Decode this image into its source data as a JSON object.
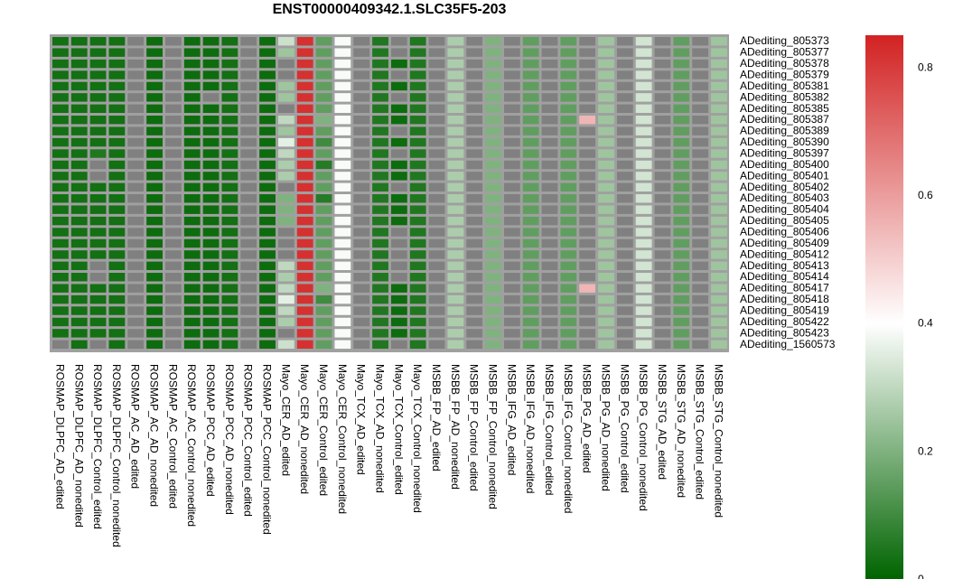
{
  "chart_data": {
    "type": "heatmap",
    "title": "ENST00000409342.1.SLC35F5-203",
    "columns": [
      "ROSMAP_DLPFC_AD_edited",
      "ROSMAP_DLPFC_AD_nonedited",
      "ROSMAP_DLPFC_Control_edited",
      "ROSMAP_DLPFC_Control_nonedited",
      "ROSMAP_AC_AD_edited",
      "ROSMAP_AC_AD_nonedited",
      "ROSMAP_AC_Control_edited",
      "ROSMAP_AC_Control_nonedited",
      "ROSMAP_PCC_AD_edited",
      "ROSMAP_PCC_AD_nonedited",
      "ROSMAP_PCC_Control_edited",
      "ROSMAP_PCC_Control_nonedited",
      "Mayo_CER_AD_edited",
      "Mayo_CER_AD_nonedited",
      "Mayo_CER_Control_edited",
      "Mayo_CER_Control_nonedited",
      "Mayo_TCX_AD_edited",
      "Mayo_TCX_AD_nonedited",
      "Mayo_TCX_Control_edited",
      "Mayo_TCX_Control_nonedited",
      "MSBB_FP_AD_edited",
      "MSBB_FP_AD_nonedited",
      "MSBB_FP_Control_edited",
      "MSBB_FP_Control_nonedited",
      "MSBB_IFG_AD_edited",
      "MSBB_IFG_AD_nonedited",
      "MSBB_IFG_Control_edited",
      "MSBB_IFG_Control_nonedited",
      "MSBB_PG_AD_edited",
      "MSBB_PG_AD_nonedited",
      "MSBB_PG_Control_edited",
      "MSBB_PG_Control_nonedited",
      "MSBB_STG_AD_edited",
      "MSBB_STG_AD_nonedited",
      "MSBB_STG_Control_edited",
      "MSBB_STG_Control_nonedited"
    ],
    "rows": [
      "ADediting_805373",
      "ADediting_805377",
      "ADediting_805378",
      "ADediting_805379",
      "ADediting_805381",
      "ADediting_805382",
      "ADediting_805385",
      "ADediting_805387",
      "ADediting_805389",
      "ADediting_805390",
      "ADediting_805397",
      "ADediting_805400",
      "ADediting_805401",
      "ADediting_805402",
      "ADediting_805403",
      "ADediting_805404",
      "ADediting_805405",
      "ADediting_805406",
      "ADediting_805409",
      "ADediting_805412",
      "ADediting_805413",
      "ADediting_805414",
      "ADediting_805417",
      "ADediting_805418",
      "ADediting_805419",
      "ADediting_805422",
      "ADediting_805423",
      "ADediting_1560573"
    ],
    "values": [
      [
        0.03,
        0.03,
        0.03,
        0.03,
        null,
        0.02,
        null,
        0.02,
        0.02,
        0.03,
        null,
        0.02,
        0.32,
        0.82,
        0.15,
        0.39,
        null,
        0.05,
        null,
        0.05,
        null,
        0.27,
        null,
        0.2,
        null,
        0.15,
        null,
        0.15,
        null,
        0.25,
        null,
        0.33,
        null,
        0.15,
        null,
        0.25
      ],
      [
        0.03,
        0.03,
        0.03,
        0.03,
        null,
        0.02,
        null,
        0.02,
        0.02,
        0.03,
        null,
        0.02,
        0.25,
        0.82,
        0.15,
        0.39,
        null,
        0.05,
        null,
        0.05,
        null,
        0.27,
        null,
        0.2,
        null,
        0.15,
        null,
        0.15,
        null,
        0.25,
        null,
        0.33,
        null,
        0.15,
        null,
        0.25
      ],
      [
        0.03,
        0.03,
        0.03,
        0.03,
        null,
        0.02,
        null,
        0.02,
        0.02,
        0.03,
        null,
        0.02,
        null,
        0.82,
        0.15,
        0.39,
        null,
        0.05,
        0.02,
        0.05,
        null,
        0.27,
        null,
        0.2,
        null,
        0.15,
        null,
        0.15,
        null,
        0.25,
        null,
        0.33,
        null,
        0.15,
        null,
        0.25
      ],
      [
        0.03,
        0.03,
        0.03,
        0.03,
        null,
        0.02,
        null,
        0.02,
        0.02,
        0.03,
        null,
        0.02,
        null,
        0.82,
        0.15,
        0.39,
        null,
        0.05,
        null,
        0.05,
        null,
        0.27,
        null,
        0.2,
        null,
        0.15,
        null,
        0.15,
        null,
        0.25,
        null,
        0.33,
        null,
        0.15,
        null,
        0.25
      ],
      [
        0.03,
        0.03,
        0.03,
        0.03,
        null,
        0.02,
        null,
        0.02,
        0.02,
        0.03,
        null,
        0.02,
        0.25,
        0.82,
        0.15,
        0.39,
        null,
        0.05,
        0.02,
        0.05,
        null,
        0.27,
        null,
        0.2,
        null,
        0.15,
        null,
        0.15,
        null,
        0.25,
        null,
        0.33,
        null,
        0.15,
        null,
        0.25
      ],
      [
        0.03,
        0.03,
        0.03,
        0.03,
        null,
        0.02,
        null,
        0.02,
        null,
        0.03,
        null,
        0.02,
        0.25,
        0.82,
        0.15,
        0.39,
        null,
        0.05,
        null,
        0.05,
        null,
        0.27,
        null,
        0.2,
        null,
        0.15,
        null,
        0.15,
        null,
        0.25,
        null,
        0.33,
        null,
        0.15,
        null,
        0.25
      ],
      [
        0.03,
        0.03,
        0.03,
        0.03,
        null,
        0.02,
        null,
        0.02,
        0.02,
        0.03,
        null,
        0.02,
        null,
        0.82,
        0.15,
        0.39,
        null,
        0.05,
        0.02,
        0.05,
        null,
        0.27,
        null,
        0.2,
        null,
        0.15,
        null,
        0.15,
        null,
        0.25,
        null,
        0.33,
        null,
        0.15,
        null,
        0.25
      ],
      [
        0.03,
        0.03,
        0.03,
        0.03,
        null,
        0.02,
        null,
        0.02,
        0.02,
        0.03,
        null,
        0.02,
        0.3,
        0.82,
        0.2,
        0.39,
        null,
        0.05,
        0.02,
        0.05,
        null,
        0.27,
        null,
        0.2,
        null,
        0.15,
        null,
        0.15,
        0.55,
        0.25,
        null,
        0.33,
        null,
        0.15,
        null,
        0.25
      ],
      [
        0.03,
        0.03,
        0.03,
        0.03,
        null,
        0.02,
        null,
        0.02,
        0.02,
        0.03,
        null,
        0.02,
        0.25,
        0.82,
        0.15,
        0.39,
        null,
        0.05,
        null,
        0.05,
        null,
        0.27,
        null,
        0.2,
        null,
        0.15,
        null,
        0.15,
        null,
        0.25,
        null,
        0.33,
        null,
        0.15,
        null,
        0.25
      ],
      [
        0.03,
        0.03,
        0.03,
        0.03,
        null,
        0.02,
        null,
        0.02,
        0.02,
        0.03,
        null,
        0.02,
        0.36,
        0.82,
        0.1,
        0.39,
        null,
        0.05,
        0.02,
        0.05,
        null,
        0.27,
        null,
        0.2,
        null,
        0.15,
        null,
        0.15,
        null,
        0.25,
        null,
        0.33,
        null,
        0.15,
        null,
        0.25
      ],
      [
        0.03,
        0.03,
        0.05,
        0.03,
        null,
        0.02,
        null,
        0.02,
        0.02,
        0.03,
        null,
        0.02,
        0.3,
        0.82,
        0.15,
        0.39,
        null,
        0.05,
        null,
        0.05,
        null,
        0.27,
        null,
        0.2,
        null,
        0.15,
        null,
        0.15,
        null,
        0.25,
        null,
        0.33,
        null,
        0.15,
        null,
        0.25
      ],
      [
        0.03,
        0.03,
        null,
        0.03,
        null,
        0.02,
        null,
        0.02,
        0.02,
        0.03,
        null,
        0.02,
        0.27,
        0.82,
        0.06,
        0.39,
        null,
        0.05,
        0.02,
        0.05,
        null,
        0.27,
        null,
        0.2,
        null,
        0.15,
        null,
        0.15,
        null,
        0.25,
        null,
        0.33,
        null,
        0.15,
        null,
        0.25
      ],
      [
        0.03,
        0.03,
        null,
        0.03,
        null,
        0.02,
        null,
        0.02,
        0.02,
        0.03,
        null,
        0.02,
        0.27,
        0.82,
        0.15,
        0.39,
        null,
        0.05,
        0.02,
        0.05,
        null,
        0.27,
        null,
        0.2,
        null,
        0.15,
        null,
        0.15,
        null,
        0.25,
        null,
        0.33,
        null,
        0.15,
        null,
        0.25
      ],
      [
        0.03,
        0.03,
        0.03,
        0.03,
        null,
        0.02,
        null,
        0.02,
        0.02,
        0.03,
        null,
        0.02,
        null,
        0.82,
        0.15,
        0.39,
        null,
        0.05,
        null,
        0.05,
        null,
        0.27,
        null,
        0.2,
        null,
        0.15,
        null,
        0.15,
        null,
        0.25,
        null,
        0.33,
        null,
        0.15,
        null,
        0.25
      ],
      [
        0.03,
        0.03,
        0.03,
        0.03,
        null,
        0.02,
        null,
        0.02,
        0.02,
        0.03,
        null,
        0.02,
        0.2,
        0.82,
        0.06,
        0.39,
        null,
        0.05,
        0.02,
        0.05,
        null,
        0.27,
        null,
        0.2,
        null,
        0.15,
        null,
        0.15,
        null,
        0.25,
        null,
        0.33,
        null,
        0.15,
        null,
        0.25
      ],
      [
        0.03,
        0.03,
        0.03,
        0.03,
        null,
        0.02,
        null,
        0.02,
        0.02,
        0.03,
        null,
        0.02,
        0.2,
        0.82,
        0.15,
        0.39,
        null,
        0.05,
        0.02,
        0.05,
        null,
        0.27,
        null,
        0.2,
        null,
        0.15,
        null,
        0.15,
        null,
        0.25,
        null,
        0.33,
        null,
        0.15,
        null,
        0.25
      ],
      [
        0.03,
        0.03,
        0.03,
        0.03,
        null,
        0.02,
        null,
        0.02,
        0.02,
        0.03,
        null,
        0.02,
        0.2,
        0.82,
        0.15,
        0.39,
        null,
        0.05,
        0.02,
        0.05,
        null,
        0.27,
        null,
        0.2,
        null,
        0.15,
        null,
        0.15,
        null,
        0.25,
        null,
        0.33,
        null,
        0.15,
        null,
        0.25
      ],
      [
        0.03,
        0.03,
        0.03,
        0.03,
        null,
        0.02,
        null,
        0.02,
        0.02,
        0.03,
        null,
        0.02,
        null,
        0.82,
        0.15,
        0.39,
        null,
        0.05,
        null,
        0.05,
        null,
        0.27,
        null,
        0.2,
        null,
        0.15,
        null,
        0.15,
        null,
        0.25,
        null,
        0.33,
        null,
        0.15,
        null,
        0.25
      ],
      [
        0.03,
        0.03,
        0.03,
        0.03,
        null,
        0.02,
        null,
        0.02,
        0.02,
        0.03,
        null,
        0.02,
        null,
        0.82,
        0.15,
        0.39,
        null,
        0.05,
        null,
        0.05,
        null,
        0.27,
        null,
        0.2,
        null,
        0.15,
        null,
        0.15,
        null,
        0.25,
        null,
        0.33,
        null,
        0.15,
        null,
        0.25
      ],
      [
        0.03,
        0.03,
        0.03,
        0.03,
        null,
        0.02,
        null,
        0.02,
        0.02,
        0.03,
        null,
        0.02,
        null,
        0.82,
        0.15,
        0.39,
        null,
        0.05,
        null,
        0.05,
        null,
        0.27,
        null,
        0.2,
        null,
        0.15,
        null,
        0.15,
        null,
        0.25,
        null,
        0.33,
        null,
        0.15,
        null,
        0.25
      ],
      [
        0.03,
        0.03,
        null,
        0.03,
        null,
        0.02,
        null,
        0.02,
        0.02,
        0.03,
        null,
        0.02,
        0.3,
        0.82,
        0.15,
        0.39,
        null,
        0.05,
        null,
        0.05,
        null,
        0.27,
        null,
        0.2,
        null,
        0.15,
        null,
        0.15,
        null,
        0.25,
        null,
        0.33,
        null,
        0.15,
        null,
        0.25
      ],
      [
        0.03,
        0.03,
        null,
        0.03,
        null,
        0.02,
        null,
        0.02,
        0.02,
        0.03,
        null,
        0.02,
        0.27,
        0.82,
        0.15,
        0.39,
        null,
        0.05,
        null,
        0.05,
        null,
        0.27,
        null,
        0.2,
        null,
        0.15,
        null,
        0.15,
        null,
        0.25,
        null,
        0.33,
        null,
        0.15,
        null,
        0.25
      ],
      [
        0.03,
        0.03,
        0.03,
        0.03,
        null,
        0.02,
        null,
        0.02,
        0.02,
        0.03,
        null,
        0.02,
        0.3,
        0.82,
        0.2,
        0.39,
        null,
        0.05,
        0.02,
        0.05,
        null,
        0.27,
        null,
        0.2,
        null,
        0.15,
        null,
        0.15,
        0.55,
        0.25,
        null,
        0.33,
        null,
        0.15,
        null,
        0.25
      ],
      [
        0.03,
        0.03,
        0.03,
        0.03,
        null,
        0.02,
        null,
        0.02,
        0.02,
        0.03,
        null,
        0.02,
        0.36,
        0.82,
        0.1,
        0.39,
        null,
        0.05,
        0.02,
        0.05,
        null,
        0.27,
        null,
        0.2,
        null,
        0.15,
        null,
        0.15,
        null,
        0.25,
        null,
        0.33,
        null,
        0.15,
        null,
        0.25
      ],
      [
        0.03,
        0.03,
        0.03,
        0.03,
        null,
        0.02,
        null,
        0.02,
        0.02,
        0.03,
        null,
        0.02,
        0.3,
        0.82,
        0.15,
        0.39,
        null,
        0.05,
        0.02,
        0.05,
        null,
        0.27,
        null,
        0.2,
        null,
        0.15,
        null,
        0.15,
        null,
        0.25,
        null,
        0.33,
        null,
        0.15,
        null,
        0.25
      ],
      [
        0.03,
        0.03,
        0.03,
        0.03,
        null,
        0.02,
        null,
        0.02,
        0.02,
        0.03,
        null,
        0.02,
        0.27,
        0.82,
        0.15,
        0.39,
        null,
        0.05,
        0.02,
        0.05,
        null,
        0.27,
        null,
        0.2,
        null,
        0.15,
        null,
        0.15,
        null,
        0.25,
        null,
        0.33,
        null,
        0.15,
        null,
        0.25
      ],
      [
        0.03,
        0.03,
        0.03,
        0.03,
        null,
        0.02,
        null,
        0.02,
        0.02,
        0.03,
        null,
        0.02,
        null,
        0.82,
        0.15,
        0.39,
        null,
        0.05,
        0.02,
        0.05,
        null,
        0.27,
        null,
        0.2,
        null,
        0.15,
        null,
        0.15,
        null,
        0.25,
        null,
        0.33,
        null,
        0.15,
        null,
        0.25
      ],
      [
        null,
        0.03,
        null,
        0.03,
        null,
        0.02,
        null,
        0.02,
        0.02,
        0.03,
        null,
        0.02,
        0.32,
        0.82,
        0.15,
        0.39,
        null,
        0.05,
        null,
        0.05,
        null,
        0.27,
        null,
        0.2,
        null,
        0.15,
        null,
        0.15,
        null,
        0.25,
        null,
        0.33,
        null,
        0.15,
        null,
        0.25
      ]
    ],
    "colorbar": {
      "min": 0,
      "max": 0.85,
      "ticks": [
        0,
        0.2,
        0.4,
        0.6,
        0.8
      ],
      "tick_labels": [
        "0",
        "0.2",
        "0.4",
        "0.6",
        "0.8"
      ]
    },
    "colors": {
      "low": "#006400",
      "mid": "#ffffff",
      "high": "#d22222",
      "na": "#808080",
      "border": "#a0a0a0"
    }
  }
}
